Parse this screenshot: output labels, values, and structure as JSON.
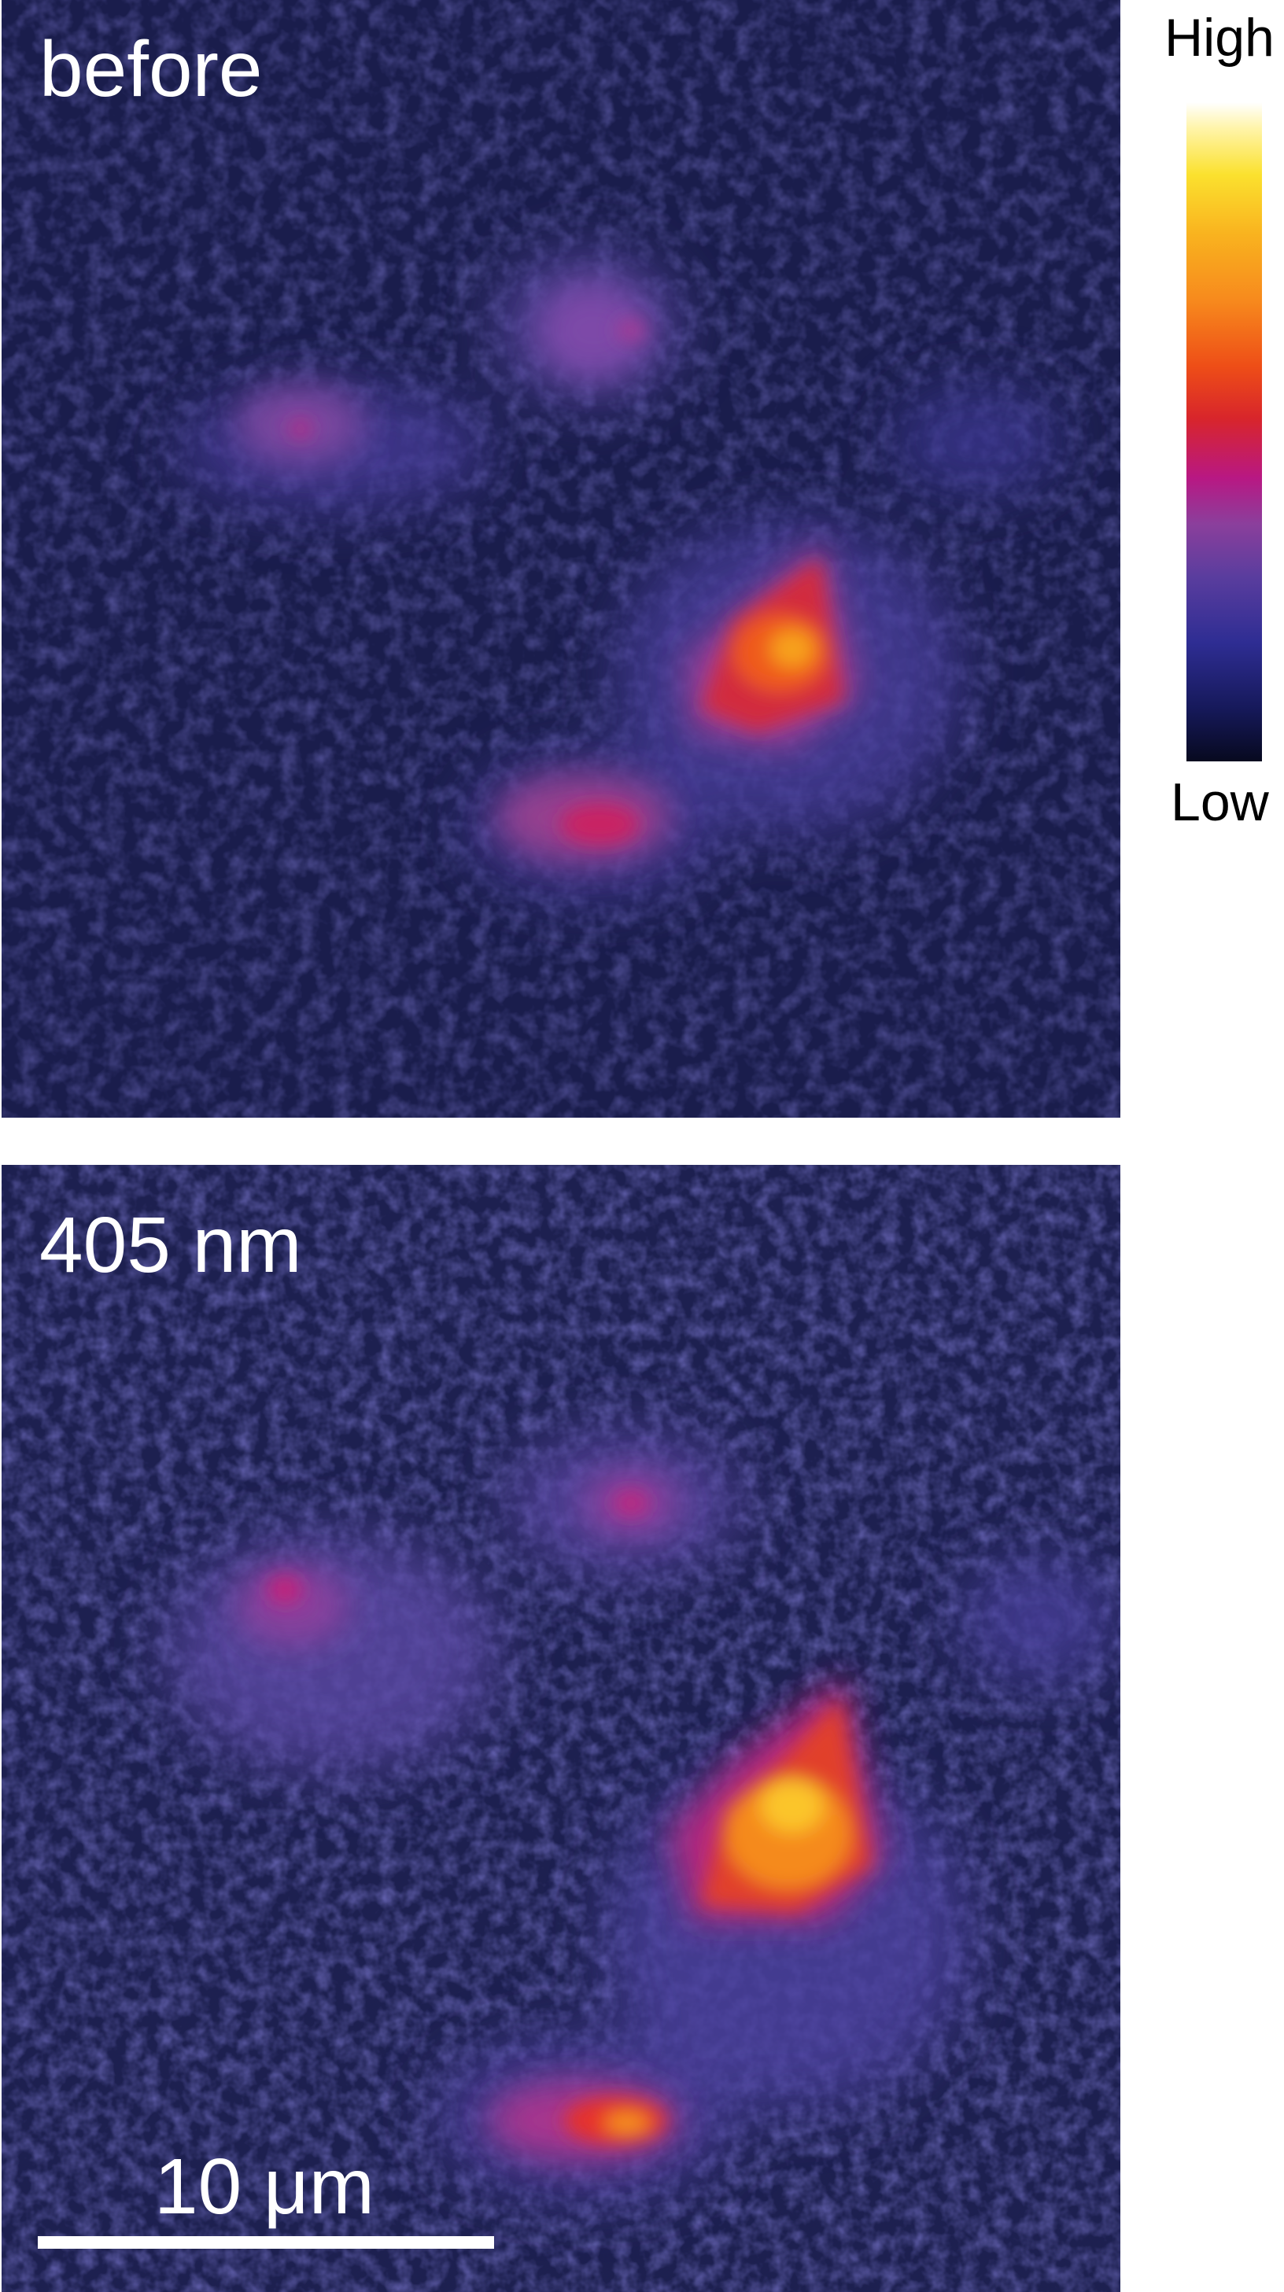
{
  "panels": {
    "before_label": "before",
    "after_label": "405 nm"
  },
  "scalebar": {
    "label": "10 μm"
  },
  "colorbar": {
    "high_label": "High",
    "low_label": "Low"
  },
  "colormap": [
    "#07091f",
    "#2e2d93",
    "#8b3f9c",
    "#b81883",
    "#d8252b",
    "#f78a1d",
    "#fbe12e",
    "#ffffff"
  ]
}
